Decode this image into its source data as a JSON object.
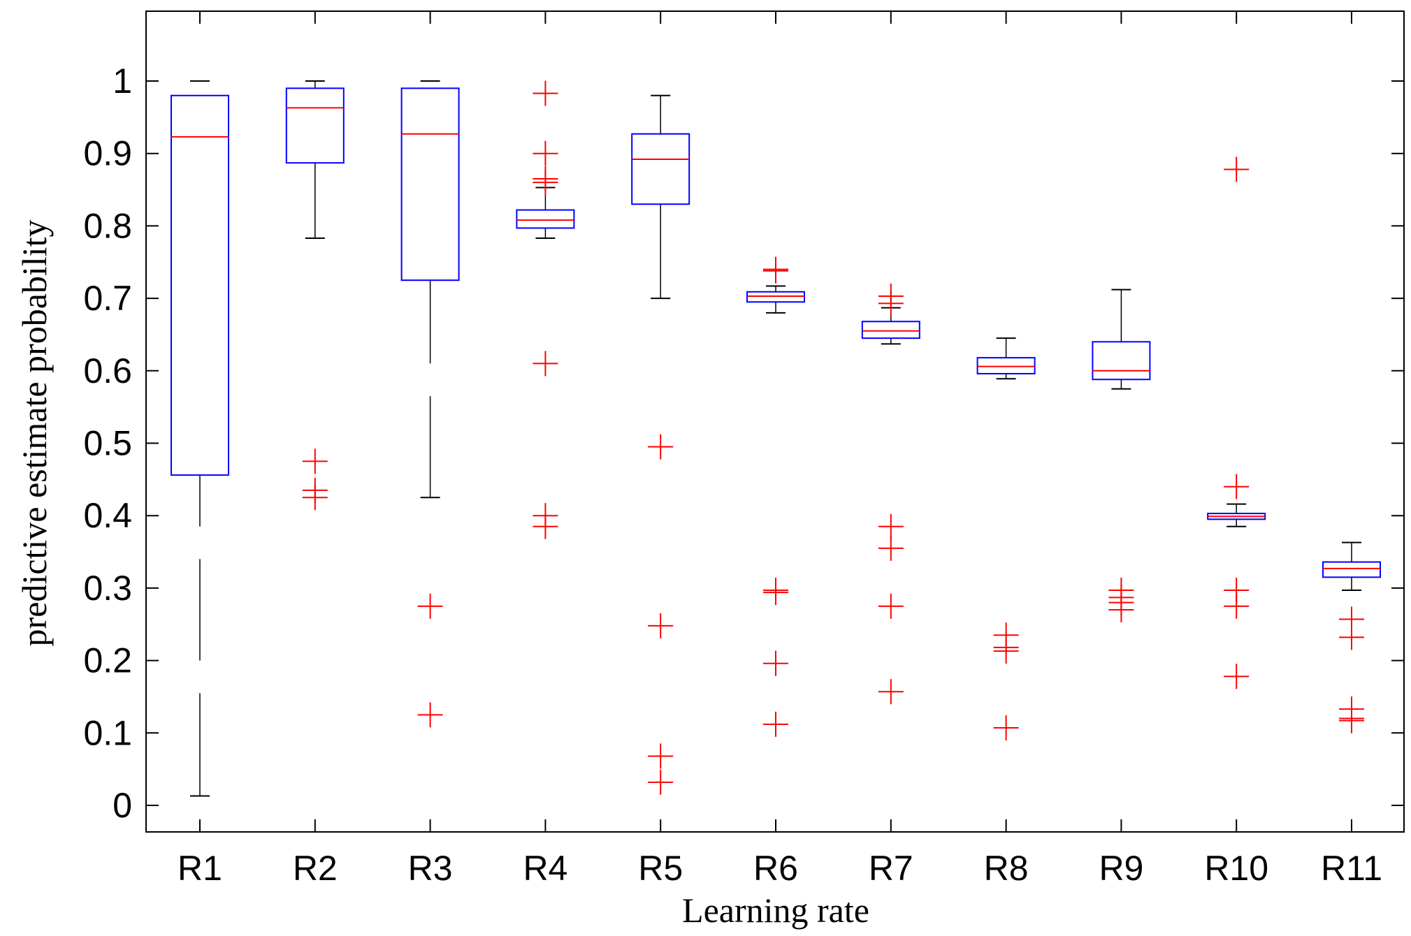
{
  "chart_data": {
    "type": "boxplot",
    "title": "",
    "xlabel": "Learning rate",
    "ylabel": "predictive estimate probability",
    "ylim": [
      -0.04,
      1.09
    ],
    "yticks": [
      0,
      0.1,
      0.2,
      0.3,
      0.4,
      0.5,
      0.6,
      0.7,
      0.8,
      0.9,
      1
    ],
    "ytick_labels": [
      "0",
      "0.1",
      "0.2",
      "0.3",
      "0.4",
      "0.5",
      "0.6",
      "0.7",
      "0.8",
      "0.9",
      "1"
    ],
    "grid": false,
    "colors": {
      "box": "#0000ff",
      "median": "#ff0000",
      "whisker": "#000000",
      "outlier": "#ff0000",
      "axis": "#000000"
    },
    "categories": [
      "R1",
      "R2",
      "R3",
      "R4",
      "R5",
      "R6",
      "R7",
      "R8",
      "R9",
      "R10",
      "R11"
    ],
    "boxes": [
      {
        "label": "R1",
        "q1": 0.456,
        "median": 0.923,
        "q3": 0.98,
        "whisker_low": 0.013,
        "whisker_high": 1.0,
        "whisker_segments": [
          [
            0.456,
            0.385
          ],
          [
            0.34,
            0.2
          ],
          [
            0.155,
            0.013
          ]
        ],
        "outliers": []
      },
      {
        "label": "R2",
        "q1": 0.887,
        "median": 0.963,
        "q3": 0.99,
        "whisker_low": 0.783,
        "whisker_high": 1.0,
        "outliers": [
          0.475,
          0.435,
          0.425
        ]
      },
      {
        "label": "R3",
        "q1": 0.725,
        "median": 0.927,
        "q3": 0.99,
        "whisker_low": 0.425,
        "whisker_high": 1.0,
        "whisker_segments": [
          [
            0.725,
            0.61
          ],
          [
            0.565,
            0.425
          ]
        ],
        "outliers": [
          0.275,
          0.125
        ]
      },
      {
        "label": "R4",
        "q1": 0.797,
        "median": 0.808,
        "q3": 0.822,
        "whisker_low": 0.783,
        "whisker_high": 0.853,
        "outliers": [
          0.983,
          0.9,
          0.865,
          0.86,
          0.61,
          0.4,
          0.385
        ]
      },
      {
        "label": "R5",
        "q1": 0.83,
        "median": 0.892,
        "q3": 0.927,
        "whisker_low": 0.7,
        "whisker_high": 0.98,
        "outliers": [
          0.495,
          0.248,
          0.068,
          0.032
        ]
      },
      {
        "label": "R6",
        "q1": 0.695,
        "median": 0.703,
        "q3": 0.709,
        "whisker_low": 0.68,
        "whisker_high": 0.717,
        "outliers": [
          0.74,
          0.738,
          0.297,
          0.294,
          0.196,
          0.112
        ]
      },
      {
        "label": "R7",
        "q1": 0.645,
        "median": 0.655,
        "q3": 0.668,
        "whisker_low": 0.637,
        "whisker_high": 0.687,
        "outliers": [
          0.703,
          0.693,
          0.385,
          0.355,
          0.275,
          0.157
        ]
      },
      {
        "label": "R8",
        "q1": 0.596,
        "median": 0.606,
        "q3": 0.618,
        "whisker_low": 0.589,
        "whisker_high": 0.645,
        "outliers": [
          0.235,
          0.218,
          0.213,
          0.107
        ]
      },
      {
        "label": "R9",
        "q1": 0.588,
        "median": 0.6,
        "q3": 0.64,
        "whisker_low": 0.575,
        "whisker_high": 0.712,
        "outliers": [
          0.297,
          0.287,
          0.28,
          0.27
        ]
      },
      {
        "label": "R10",
        "q1": 0.395,
        "median": 0.399,
        "q3": 0.403,
        "whisker_low": 0.385,
        "whisker_high": 0.416,
        "outliers": [
          0.878,
          0.44,
          0.297,
          0.275,
          0.178
        ]
      },
      {
        "label": "R11",
        "q1": 0.315,
        "median": 0.327,
        "q3": 0.336,
        "whisker_low": 0.297,
        "whisker_high": 0.363,
        "outliers": [
          0.257,
          0.232,
          0.133,
          0.12,
          0.117
        ]
      }
    ]
  }
}
